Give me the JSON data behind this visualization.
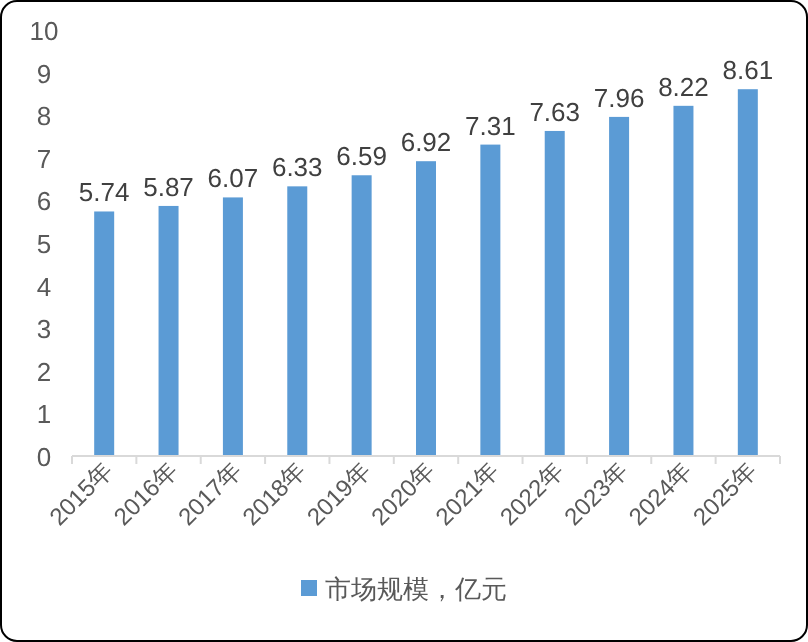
{
  "chart_data": {
    "type": "bar",
    "categories": [
      "2015年",
      "2016年",
      "2017年",
      "2018年",
      "2019年",
      "2020年",
      "2021年",
      "2022年",
      "2023年",
      "2024年",
      "2025年"
    ],
    "series": [
      {
        "name": "市场规模，亿元",
        "color": "#5b9bd5",
        "values": [
          5.74,
          5.87,
          6.07,
          6.33,
          6.59,
          6.92,
          7.31,
          7.63,
          7.96,
          8.22,
          8.61
        ]
      }
    ],
    "ylim": [
      0,
      10
    ],
    "yticks": [
      0,
      1,
      2,
      3,
      4,
      5,
      6,
      7,
      8,
      9,
      10
    ],
    "data_labels": true,
    "grid": false,
    "legend": "bottom"
  }
}
